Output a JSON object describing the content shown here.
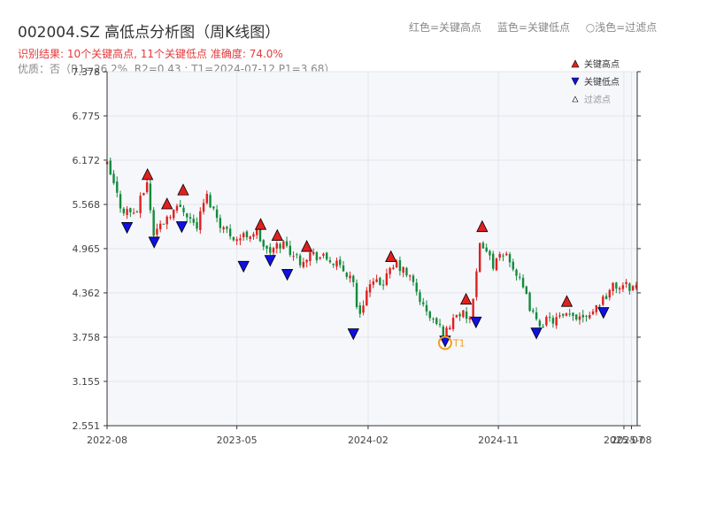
{
  "header": {
    "title": "002004.SZ 高低点分析图（周K线图）",
    "summary": "识别结果: 10个关键高点, 11个关键低点  准确度: 74.0%",
    "quality": "优质：否（R1=26.2%, R2=0.43 ; T1=2024-07-12 P1=3.68）",
    "legend_hint": [
      "红色=关键高点",
      "蓝色=关键低点",
      "○浅色=过滤点"
    ]
  },
  "colors": {
    "up": "#e02020",
    "down": "#148a3c",
    "high": "#e02020",
    "low": "#1010e0",
    "t1": "#f0a020",
    "plot_bg": "#f5f7fa",
    "grid": "#e2e6ec"
  },
  "chart_data": {
    "type": "candlestick",
    "title": "002004.SZ 高低点分析图（周K线图）",
    "ylim": [
      2.551,
      7.378
    ],
    "yticks": [
      "2.551",
      "3.155",
      "3.758",
      "4.362",
      "4.965",
      "5.568",
      "6.172",
      "6.775",
      "7.378"
    ],
    "xlim": [
      "2022-08-01",
      "2025-08-20"
    ],
    "xticks": [
      {
        "date": "2022-08-01",
        "label": "2022-08"
      },
      {
        "date": "2023-05-01",
        "label": "2023-05"
      },
      {
        "date": "2024-02-01",
        "label": "2024-02"
      },
      {
        "date": "2024-11-01",
        "label": "2024-11"
      },
      {
        "date": "2025-07-23",
        "label": "2025-07"
      },
      {
        "date": "2025-08-08",
        "label": "2025-08"
      }
    ],
    "grid": true,
    "legend": {
      "placement": "top-right",
      "entries": [
        "关键高点",
        "关键低点",
        "过滤点"
      ]
    },
    "close_path": [
      [
        "2022-08-01",
        6.1
      ],
      [
        "2022-09-01",
        5.5
      ],
      [
        "2022-10-01",
        5.45
      ],
      [
        "2022-10-25",
        5.9
      ],
      [
        "2022-11-05",
        5.15
      ],
      [
        "2022-12-10",
        5.45
      ],
      [
        "2023-01-05",
        5.55
      ],
      [
        "2023-02-05",
        5.25
      ],
      [
        "2023-02-25",
        5.7
      ],
      [
        "2023-04-01",
        5.25
      ],
      [
        "2023-05-01",
        5.1
      ],
      [
        "2023-06-10",
        5.2
      ],
      [
        "2023-07-05",
        4.9
      ],
      [
        "2023-08-05",
        5.05
      ],
      [
        "2023-09-10",
        4.8
      ],
      [
        "2023-10-01",
        4.9
      ],
      [
        "2023-11-15",
        4.8
      ],
      [
        "2024-01-01",
        4.55
      ],
      [
        "2024-01-10",
        4.0
      ],
      [
        "2024-02-01",
        4.45
      ],
      [
        "2024-03-01",
        4.5
      ],
      [
        "2024-04-01",
        4.75
      ],
      [
        "2024-05-01",
        4.55
      ],
      [
        "2024-06-01",
        4.1
      ],
      [
        "2024-07-12",
        3.8
      ],
      [
        "2024-08-05",
        4.1
      ],
      [
        "2024-09-05",
        4.0
      ],
      [
        "2024-09-25",
        5.1
      ],
      [
        "2024-10-20",
        4.75
      ],
      [
        "2024-11-20",
        4.9
      ],
      [
        "2024-12-20",
        4.45
      ],
      [
        "2025-01-20",
        3.95
      ],
      [
        "2025-03-01",
        4.0
      ],
      [
        "2025-04-15",
        4.05
      ],
      [
        "2025-05-15",
        4.1
      ],
      [
        "2025-07-01",
        4.45
      ],
      [
        "2025-08-20",
        4.45
      ]
    ],
    "key_highs": [
      [
        "2022-10-25",
        5.98
      ],
      [
        "2022-12-05",
        5.58
      ],
      [
        "2023-01-08",
        5.77
      ],
      [
        "2023-06-20",
        5.3
      ],
      [
        "2023-07-25",
        5.15
      ],
      [
        "2023-09-25",
        5.0
      ],
      [
        "2024-03-20",
        4.86
      ],
      [
        "2024-08-25",
        4.28
      ],
      [
        "2024-09-28",
        5.27
      ],
      [
        "2025-03-25",
        4.25
      ]
    ],
    "key_lows": [
      [
        "2022-09-12",
        5.25
      ],
      [
        "2022-11-08",
        5.05
      ],
      [
        "2023-01-05",
        5.26
      ],
      [
        "2023-05-15",
        4.72
      ],
      [
        "2023-07-10",
        4.8
      ],
      [
        "2023-08-15",
        4.61
      ],
      [
        "2024-01-01",
        3.8
      ],
      [
        "2024-07-12",
        3.7
      ],
      [
        "2024-09-15",
        3.96
      ],
      [
        "2025-01-20",
        3.81
      ],
      [
        "2025-06-10",
        4.09
      ]
    ],
    "t1": {
      "date": "2024-07-12",
      "price": 3.68,
      "label": "T1"
    }
  }
}
